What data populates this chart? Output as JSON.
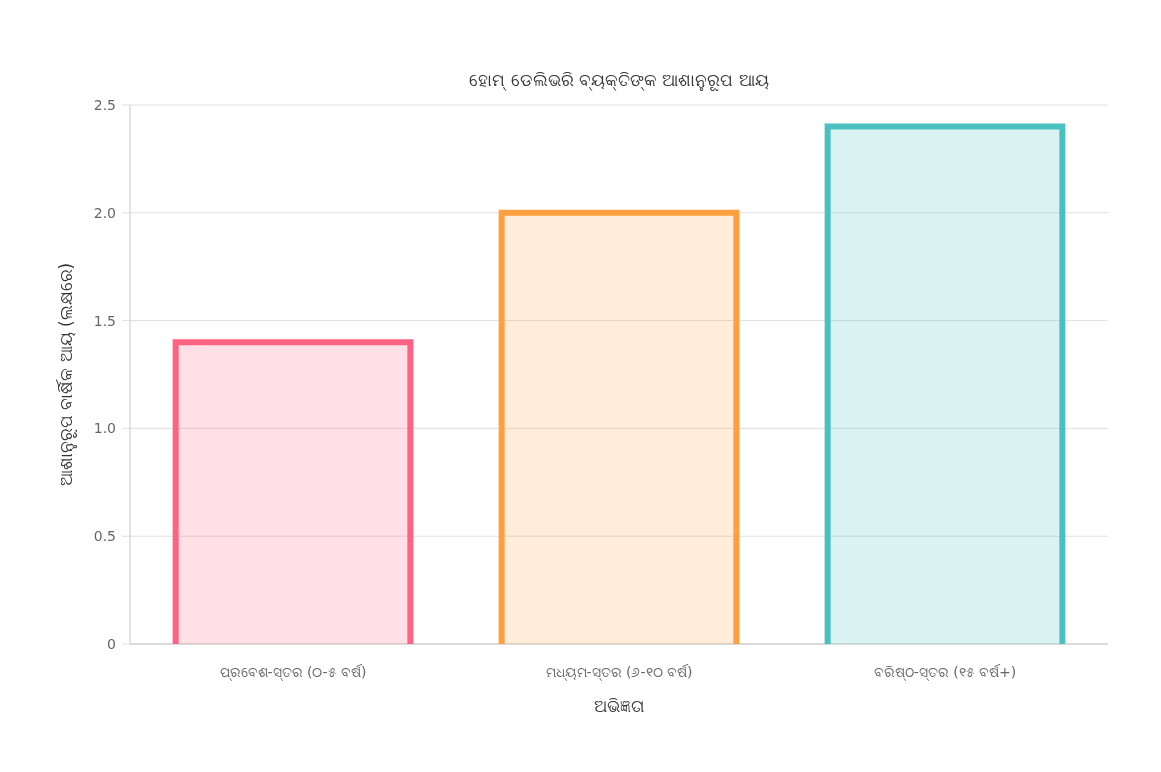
{
  "chart_data": {
    "type": "bar",
    "title": "ହୋମ୍ ଡେଲିଭରି ବ୍ୟକ୍ତିଙ୍କ ଆଶାନୁରୂପ ଆୟ",
    "xlabel": "ଅଭିଜ୍ଞତା",
    "ylabel": "ଆଶାନୁରୂପ ବାର୍ଷିକ ଆୟ (ଲକ୍ଷରେ)",
    "categories": [
      "ପ୍ରବେଶ-ସ୍ତର (୦-୫ ବର୍ଷ)",
      "ମଧ୍ୟମ-ସ୍ତର (୬-୧୦ ବର୍ଷ)",
      "ବରିଷ୍ଠ-ସ୍ତର (୧୫ ବର୍ଷ+)"
    ],
    "values": [
      1.4,
      2.0,
      2.4
    ],
    "colors": [
      "#ff6384",
      "#ff9f40",
      "#4bc0c0"
    ],
    "ylim": [
      0,
      2.5
    ],
    "yticks": [
      0,
      {
        "value": 0.5,
        "label": "0.5"
      },
      {
        "value": 1,
        "label": "1.0"
      },
      {
        "value": 1.5,
        "label": "1.5"
      },
      {
        "value": 2,
        "label": "2.0"
      },
      {
        "value": 2.5,
        "label": "2.5"
      }
    ],
    "grid": "y"
  }
}
